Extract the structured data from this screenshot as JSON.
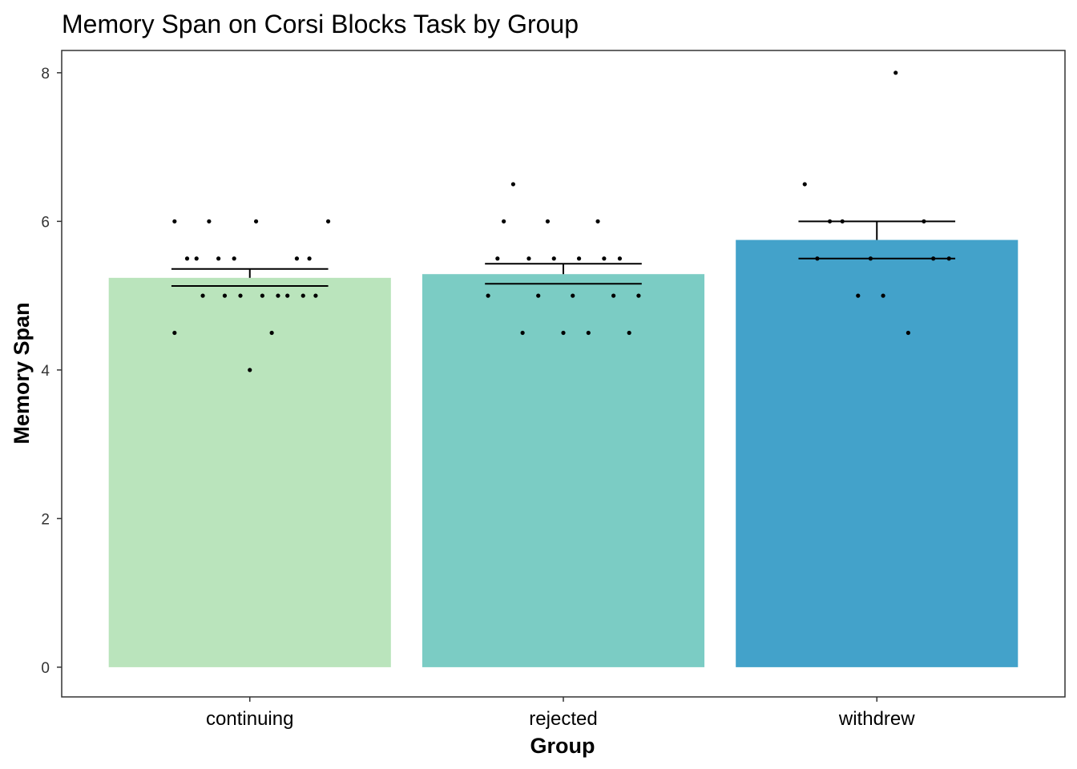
{
  "chart_data": {
    "type": "bar",
    "title": "Memory Span on Corsi Blocks Task by Group",
    "xlabel": "Group",
    "ylabel": "Memory Span",
    "ylim": [
      -0.4,
      8.3
    ],
    "yticks": [
      0,
      2,
      4,
      6,
      8
    ],
    "categories": [
      "continuing",
      "rejected",
      "withdrew"
    ],
    "values": [
      5.24,
      5.29,
      5.75
    ],
    "error_bars": [
      {
        "lower": 5.13,
        "upper": 5.36
      },
      {
        "lower": 5.16,
        "upper": 5.43
      },
      {
        "lower": 5.5,
        "upper": 6.0
      }
    ],
    "colors": [
      "#bae4bc",
      "#7bccc4",
      "#43a2ca"
    ],
    "points": [
      [
        {
          "x": -0.24,
          "y": 6
        },
        {
          "x": -0.13,
          "y": 6
        },
        {
          "x": 0.02,
          "y": 6
        },
        {
          "x": 0.25,
          "y": 6
        },
        {
          "x": -0.2,
          "y": 5.5
        },
        {
          "x": -0.17,
          "y": 5.5
        },
        {
          "x": -0.1,
          "y": 5.5
        },
        {
          "x": -0.05,
          "y": 5.5
        },
        {
          "x": 0.15,
          "y": 5.5
        },
        {
          "x": 0.19,
          "y": 5.5
        },
        {
          "x": -0.15,
          "y": 5
        },
        {
          "x": -0.08,
          "y": 5
        },
        {
          "x": -0.03,
          "y": 5
        },
        {
          "x": 0.04,
          "y": 5
        },
        {
          "x": 0.09,
          "y": 5
        },
        {
          "x": 0.12,
          "y": 5
        },
        {
          "x": 0.17,
          "y": 5
        },
        {
          "x": 0.21,
          "y": 5
        },
        {
          "x": -0.24,
          "y": 4.5
        },
        {
          "x": 0.07,
          "y": 4.5
        },
        {
          "x": 0.0,
          "y": 4
        }
      ],
      [
        {
          "x": -0.16,
          "y": 6.5
        },
        {
          "x": -0.19,
          "y": 6
        },
        {
          "x": -0.05,
          "y": 6
        },
        {
          "x": 0.11,
          "y": 6
        },
        {
          "x": -0.21,
          "y": 5.5
        },
        {
          "x": -0.11,
          "y": 5.5
        },
        {
          "x": -0.03,
          "y": 5.5
        },
        {
          "x": 0.05,
          "y": 5.5
        },
        {
          "x": 0.13,
          "y": 5.5
        },
        {
          "x": 0.18,
          "y": 5.5
        },
        {
          "x": -0.24,
          "y": 5
        },
        {
          "x": -0.08,
          "y": 5
        },
        {
          "x": 0.03,
          "y": 5
        },
        {
          "x": 0.16,
          "y": 5
        },
        {
          "x": 0.24,
          "y": 5
        },
        {
          "x": -0.13,
          "y": 4.5
        },
        {
          "x": 0.0,
          "y": 4.5
        },
        {
          "x": 0.08,
          "y": 4.5
        },
        {
          "x": 0.21,
          "y": 4.5
        }
      ],
      [
        {
          "x": 0.06,
          "y": 8
        },
        {
          "x": -0.23,
          "y": 6.5
        },
        {
          "x": -0.15,
          "y": 6
        },
        {
          "x": -0.11,
          "y": 6
        },
        {
          "x": 0.15,
          "y": 6
        },
        {
          "x": -0.19,
          "y": 5.5
        },
        {
          "x": -0.02,
          "y": 5.5
        },
        {
          "x": 0.18,
          "y": 5.5
        },
        {
          "x": 0.23,
          "y": 5.5
        },
        {
          "x": -0.06,
          "y": 5
        },
        {
          "x": 0.02,
          "y": 5
        },
        {
          "x": 0.1,
          "y": 4.5
        }
      ]
    ]
  }
}
